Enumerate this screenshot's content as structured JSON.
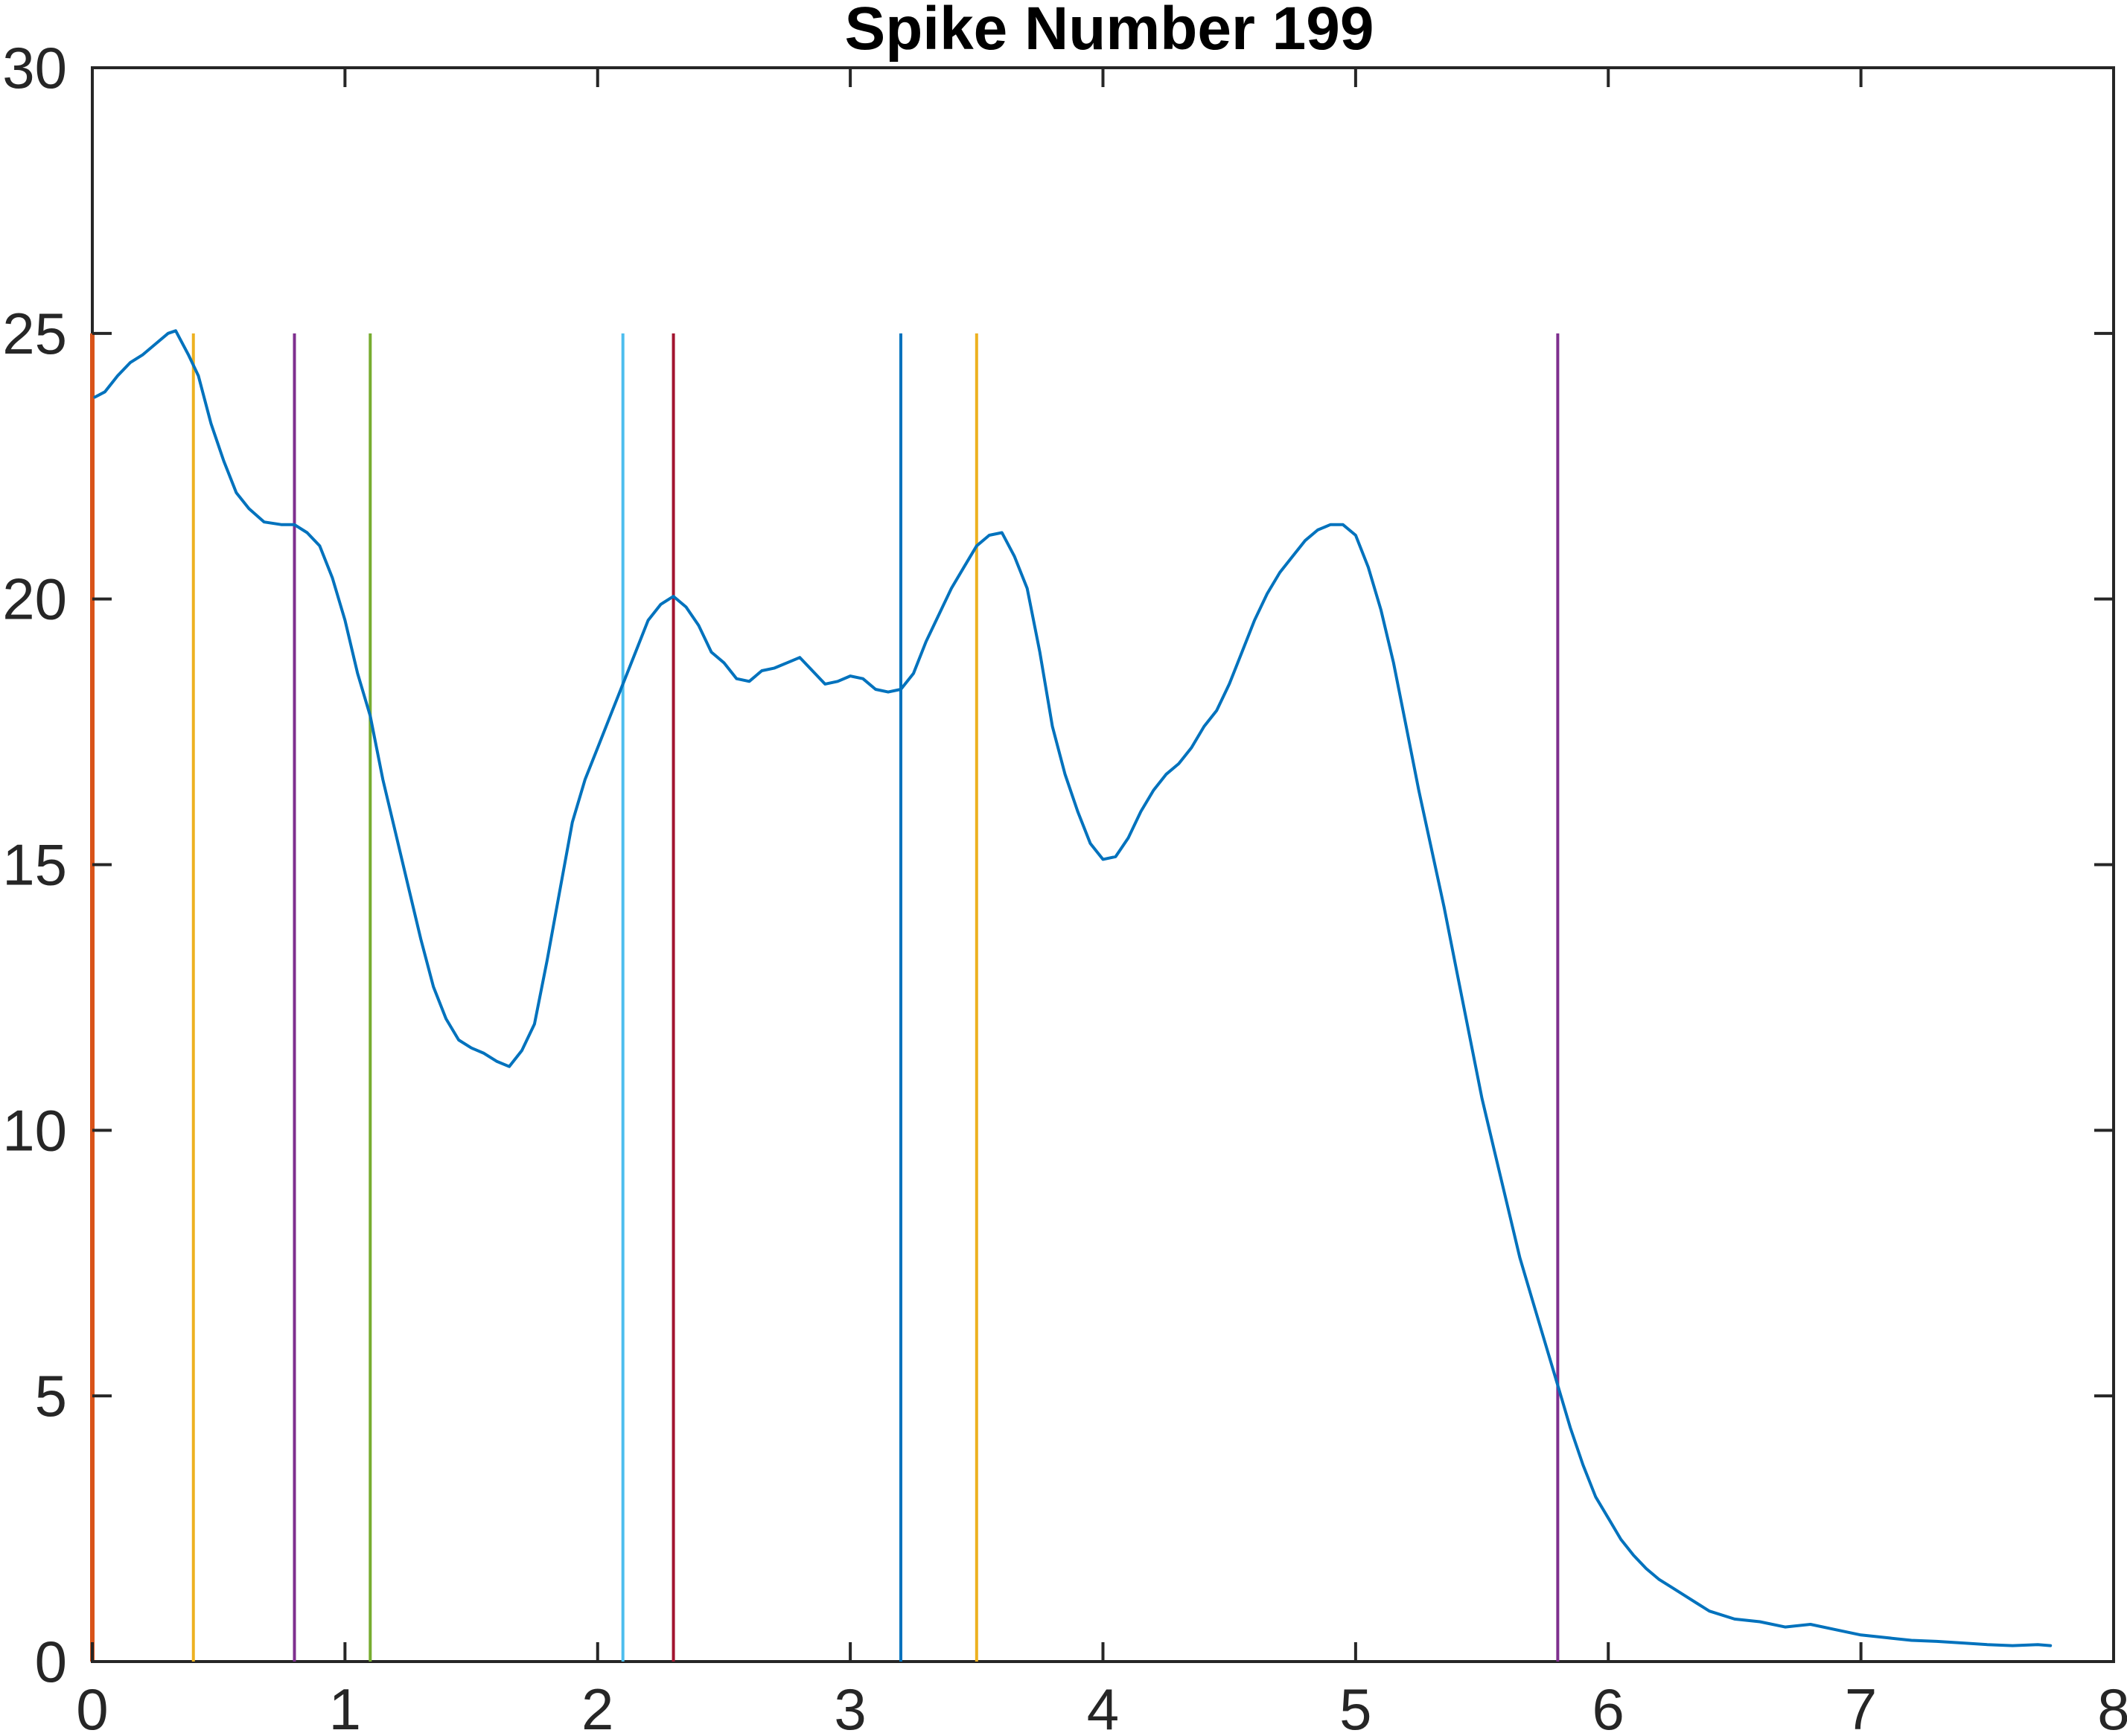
{
  "chart_data": {
    "type": "line",
    "title": "Spike Number 199",
    "xlabel": "",
    "ylabel": "",
    "xlim": [
      0,
      8
    ],
    "ylim": [
      0,
      30
    ],
    "x_ticks": [
      "0",
      "1",
      "2",
      "3",
      "4",
      "5",
      "6",
      "7",
      "8"
    ],
    "y_ticks": [
      "0",
      "5",
      "10",
      "15",
      "20",
      "25",
      "30"
    ],
    "grid": false,
    "series": [
      {
        "color": "#0072BD",
        "points": [
          [
            0.01,
            23.8
          ],
          [
            0.05,
            23.9
          ],
          [
            0.1,
            24.2
          ],
          [
            0.15,
            24.45
          ],
          [
            0.2,
            24.6
          ],
          [
            0.25,
            24.8
          ],
          [
            0.3,
            25.0
          ],
          [
            0.33,
            25.05
          ],
          [
            0.38,
            24.6
          ],
          [
            0.42,
            24.2
          ],
          [
            0.47,
            23.3
          ],
          [
            0.52,
            22.6
          ],
          [
            0.57,
            22.0
          ],
          [
            0.62,
            21.7
          ],
          [
            0.68,
            21.45
          ],
          [
            0.75,
            21.4
          ],
          [
            0.8,
            21.4
          ],
          [
            0.85,
            21.25
          ],
          [
            0.9,
            21.0
          ],
          [
            0.95,
            20.4
          ],
          [
            1.0,
            19.6
          ],
          [
            1.05,
            18.6
          ],
          [
            1.1,
            17.8
          ],
          [
            1.15,
            16.6
          ],
          [
            1.2,
            15.6
          ],
          [
            1.25,
            14.6
          ],
          [
            1.3,
            13.6
          ],
          [
            1.35,
            12.7
          ],
          [
            1.4,
            12.1
          ],
          [
            1.45,
            11.7
          ],
          [
            1.5,
            11.55
          ],
          [
            1.55,
            11.45
          ],
          [
            1.6,
            11.3
          ],
          [
            1.65,
            11.2
          ],
          [
            1.7,
            11.5
          ],
          [
            1.75,
            12.0
          ],
          [
            1.8,
            13.2
          ],
          [
            1.85,
            14.5
          ],
          [
            1.9,
            15.8
          ],
          [
            1.95,
            16.6
          ],
          [
            2.0,
            17.2
          ],
          [
            2.05,
            17.8
          ],
          [
            2.1,
            18.4
          ],
          [
            2.15,
            19.0
          ],
          [
            2.2,
            19.6
          ],
          [
            2.25,
            19.9
          ],
          [
            2.3,
            20.05
          ],
          [
            2.35,
            19.85
          ],
          [
            2.4,
            19.5
          ],
          [
            2.45,
            19.0
          ],
          [
            2.5,
            18.8
          ],
          [
            2.55,
            18.5
          ],
          [
            2.6,
            18.45
          ],
          [
            2.65,
            18.65
          ],
          [
            2.7,
            18.7
          ],
          [
            2.75,
            18.8
          ],
          [
            2.8,
            18.9
          ],
          [
            2.85,
            18.65
          ],
          [
            2.9,
            18.4
          ],
          [
            2.95,
            18.45
          ],
          [
            3.0,
            18.55
          ],
          [
            3.05,
            18.5
          ],
          [
            3.1,
            18.3
          ],
          [
            3.15,
            18.25
          ],
          [
            3.2,
            18.3
          ],
          [
            3.25,
            18.6
          ],
          [
            3.3,
            19.2
          ],
          [
            3.35,
            19.7
          ],
          [
            3.4,
            20.2
          ],
          [
            3.45,
            20.6
          ],
          [
            3.5,
            21.0
          ],
          [
            3.55,
            21.2
          ],
          [
            3.6,
            21.25
          ],
          [
            3.65,
            20.8
          ],
          [
            3.7,
            20.2
          ],
          [
            3.75,
            19.0
          ],
          [
            3.8,
            17.6
          ],
          [
            3.85,
            16.7
          ],
          [
            3.9,
            16.0
          ],
          [
            3.95,
            15.4
          ],
          [
            4.0,
            15.1
          ],
          [
            4.05,
            15.15
          ],
          [
            4.1,
            15.5
          ],
          [
            4.15,
            16.0
          ],
          [
            4.2,
            16.4
          ],
          [
            4.25,
            16.7
          ],
          [
            4.3,
            16.9
          ],
          [
            4.35,
            17.2
          ],
          [
            4.4,
            17.6
          ],
          [
            4.45,
            17.9
          ],
          [
            4.5,
            18.4
          ],
          [
            4.55,
            19.0
          ],
          [
            4.6,
            19.6
          ],
          [
            4.65,
            20.1
          ],
          [
            4.7,
            20.5
          ],
          [
            4.75,
            20.8
          ],
          [
            4.8,
            21.1
          ],
          [
            4.85,
            21.3
          ],
          [
            4.9,
            21.4
          ],
          [
            4.95,
            21.4
          ],
          [
            5.0,
            21.2
          ],
          [
            5.05,
            20.6
          ],
          [
            5.1,
            19.8
          ],
          [
            5.15,
            18.8
          ],
          [
            5.2,
            17.6
          ],
          [
            5.25,
            16.4
          ],
          [
            5.3,
            15.3
          ],
          [
            5.35,
            14.2
          ],
          [
            5.4,
            13.0
          ],
          [
            5.45,
            11.8
          ],
          [
            5.5,
            10.6
          ],
          [
            5.55,
            9.6
          ],
          [
            5.6,
            8.6
          ],
          [
            5.65,
            7.6
          ],
          [
            5.7,
            6.8
          ],
          [
            5.75,
            6.0
          ],
          [
            5.8,
            5.2
          ],
          [
            5.85,
            4.4
          ],
          [
            5.9,
            3.7
          ],
          [
            5.95,
            3.1
          ],
          [
            6.0,
            2.7
          ],
          [
            6.05,
            2.3
          ],
          [
            6.1,
            2.0
          ],
          [
            6.15,
            1.75
          ],
          [
            6.2,
            1.55
          ],
          [
            6.25,
            1.4
          ],
          [
            6.3,
            1.25
          ],
          [
            6.35,
            1.1
          ],
          [
            6.4,
            0.95
          ],
          [
            6.5,
            0.8
          ],
          [
            6.6,
            0.75
          ],
          [
            6.7,
            0.65
          ],
          [
            6.8,
            0.7
          ],
          [
            6.9,
            0.6
          ],
          [
            7.0,
            0.5
          ],
          [
            7.1,
            0.45
          ],
          [
            7.2,
            0.4
          ],
          [
            7.3,
            0.38
          ],
          [
            7.4,
            0.35
          ],
          [
            7.5,
            0.32
          ],
          [
            7.6,
            0.3
          ],
          [
            7.7,
            0.32
          ],
          [
            7.75,
            0.3
          ]
        ]
      }
    ],
    "markers": [
      {
        "x": 0.0,
        "color": "#D95319"
      },
      {
        "x": 0.4,
        "color": "#EDB120"
      },
      {
        "x": 0.8,
        "color": "#7E2F8E"
      },
      {
        "x": 1.1,
        "color": "#77AC30"
      },
      {
        "x": 2.1,
        "color": "#4DBEEE"
      },
      {
        "x": 2.3,
        "color": "#A2142F"
      },
      {
        "x": 3.2,
        "color": "#0072BD"
      },
      {
        "x": 3.5,
        "color": "#EDB120"
      },
      {
        "x": 5.8,
        "color": "#7E2F8E"
      }
    ],
    "marker_range": [
      0,
      25
    ]
  }
}
